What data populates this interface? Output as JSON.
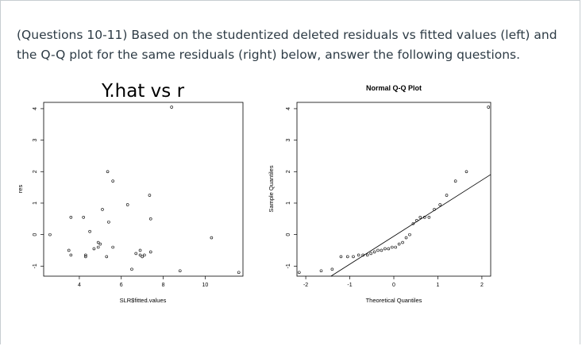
{
  "question": {
    "text": "(Questions 10-11) Based on the studentized deleted residuals vs fitted values (left) and the Q-Q plot for the same residuals (right) below, answer the following questions."
  },
  "chart_data": [
    {
      "type": "scatter",
      "title": "Y.hat vs r",
      "xlabel": "SLR$fitted.values",
      "ylabel": "res",
      "xticks": [
        4,
        6,
        8,
        10
      ],
      "yticks": [
        -1,
        0,
        1,
        2,
        3,
        4
      ],
      "xlim": [
        2.3,
        11.8
      ],
      "ylim": [
        -1.32,
        4.2
      ],
      "points": [
        [
          2.6,
          0.0
        ],
        [
          3.5,
          -0.5
        ],
        [
          3.6,
          -0.65
        ],
        [
          3.6,
          0.55
        ],
        [
          4.2,
          0.55
        ],
        [
          4.3,
          -0.7
        ],
        [
          4.3,
          -0.65
        ],
        [
          4.5,
          0.1
        ],
        [
          4.7,
          -0.45
        ],
        [
          4.9,
          -0.4
        ],
        [
          4.9,
          -0.25
        ],
        [
          5.0,
          -0.3
        ],
        [
          5.1,
          0.8
        ],
        [
          5.3,
          -0.7
        ],
        [
          5.35,
          2.0
        ],
        [
          5.4,
          0.4
        ],
        [
          5.6,
          1.7
        ],
        [
          5.6,
          -0.4
        ],
        [
          6.3,
          0.95
        ],
        [
          6.5,
          -1.1
        ],
        [
          6.7,
          -0.6
        ],
        [
          6.9,
          -0.5
        ],
        [
          6.9,
          -0.65
        ],
        [
          7.0,
          -0.7
        ],
        [
          7.1,
          -0.65
        ],
        [
          7.35,
          1.25
        ],
        [
          7.4,
          0.5
        ],
        [
          7.4,
          -0.55
        ],
        [
          8.4,
          4.05
        ],
        [
          8.8,
          -1.15
        ],
        [
          10.3,
          -0.1
        ],
        [
          11.6,
          -1.2
        ]
      ]
    },
    {
      "type": "scatter",
      "title": "Normal Q-Q Plot",
      "xlabel": "Theoretical Quantiles",
      "ylabel": "Sample Quantiles",
      "xticks": [
        -2,
        -1,
        0,
        1,
        2
      ],
      "yticks": [
        -1,
        0,
        1,
        2,
        3,
        4
      ],
      "xlim": [
        -2.2,
        2.2
      ],
      "ylim": [
        -1.32,
        4.2
      ],
      "reference_line": true,
      "points": [
        [
          -2.15,
          -1.2
        ],
        [
          -1.65,
          -1.15
        ],
        [
          -1.4,
          -1.1
        ],
        [
          -1.2,
          -0.7
        ],
        [
          -1.05,
          -0.7
        ],
        [
          -0.92,
          -0.7
        ],
        [
          -0.8,
          -0.65
        ],
        [
          -0.7,
          -0.65
        ],
        [
          -0.6,
          -0.65
        ],
        [
          -0.52,
          -0.6
        ],
        [
          -0.44,
          -0.55
        ],
        [
          -0.36,
          -0.5
        ],
        [
          -0.28,
          -0.5
        ],
        [
          -0.2,
          -0.45
        ],
        [
          -0.12,
          -0.45
        ],
        [
          -0.04,
          -0.4
        ],
        [
          0.04,
          -0.4
        ],
        [
          0.12,
          -0.3
        ],
        [
          0.2,
          -0.25
        ],
        [
          0.28,
          -0.1
        ],
        [
          0.36,
          0.0
        ],
        [
          0.44,
          0.35
        ],
        [
          0.52,
          0.45
        ],
        [
          0.6,
          0.55
        ],
        [
          0.7,
          0.55
        ],
        [
          0.8,
          0.55
        ],
        [
          0.92,
          0.8
        ],
        [
          1.05,
          0.95
        ],
        [
          1.2,
          1.25
        ],
        [
          1.4,
          1.7
        ],
        [
          1.65,
          2.0
        ],
        [
          2.15,
          4.05
        ]
      ]
    }
  ]
}
